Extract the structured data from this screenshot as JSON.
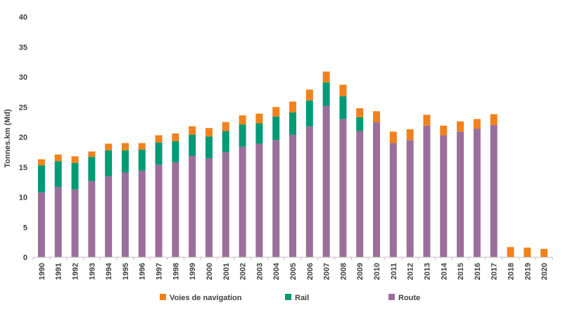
{
  "chart_data": {
    "type": "bar",
    "stacked": true,
    "title": "",
    "xlabel": "",
    "ylabel": "Tonnes.km (Md)",
    "ylim": [
      0,
      40
    ],
    "yticks": [
      0,
      5,
      10,
      15,
      20,
      25,
      30,
      35,
      40
    ],
    "grid": false,
    "legend_position": "bottom",
    "categories": [
      "1990",
      "1991",
      "1992",
      "1993",
      "1994",
      "1995",
      "1996",
      "1997",
      "1998",
      "1999",
      "2000",
      "2001",
      "2002",
      "2003",
      "2004",
      "2005",
      "2006",
      "2007",
      "2008",
      "2009",
      "2010",
      "2011",
      "2012",
      "2013",
      "2014",
      "2015",
      "2016",
      "2017",
      "2018",
      "2019",
      "2020"
    ],
    "series": [
      {
        "name": "Route",
        "color": "#9b6f9b",
        "values": [
          10.8,
          11.7,
          11.3,
          12.7,
          13.5,
          14.1,
          14.4,
          15.4,
          15.8,
          16.9,
          16.5,
          17.5,
          18.4,
          18.9,
          19.5,
          20.4,
          21.8,
          25.2,
          23.0,
          21.0,
          22.5,
          19.0,
          19.5,
          21.9,
          20.3,
          20.9,
          21.4,
          22.0,
          0,
          0,
          0
        ]
      },
      {
        "name": "Rail",
        "color": "#009a74",
        "values": [
          4.5,
          4.3,
          4.4,
          4.0,
          4.3,
          3.7,
          3.5,
          3.7,
          3.5,
          3.5,
          3.6,
          3.5,
          3.7,
          3.4,
          3.9,
          3.7,
          4.3,
          3.9,
          3.8,
          2.3,
          0,
          0,
          0,
          0,
          0,
          0,
          0,
          0,
          0,
          0,
          0
        ]
      },
      {
        "name": "Voies de navigation",
        "color": "#f0821e",
        "values": [
          1.0,
          1.1,
          1.1,
          0.9,
          1.1,
          1.2,
          1.1,
          1.2,
          1.3,
          1.4,
          1.4,
          1.5,
          1.5,
          1.6,
          1.6,
          1.8,
          1.8,
          1.8,
          1.9,
          1.5,
          1.8,
          1.9,
          1.8,
          1.8,
          1.6,
          1.7,
          1.6,
          1.8,
          1.7,
          1.6,
          1.4
        ]
      }
    ],
    "legend": [
      {
        "name": "Voies de navigation",
        "color": "#f0821e"
      },
      {
        "name": "Rail",
        "color": "#009a74"
      },
      {
        "name": "Route",
        "color": "#9b6f9b"
      }
    ]
  }
}
